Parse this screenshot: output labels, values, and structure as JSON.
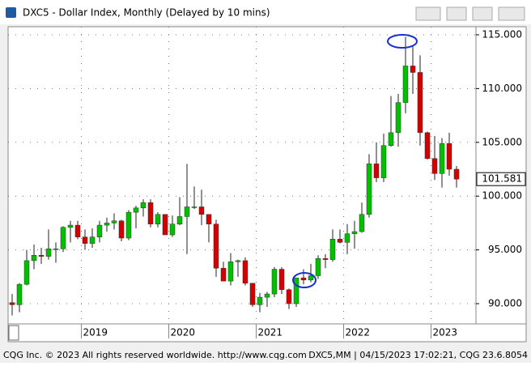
{
  "chart_data": {
    "type": "candlestick",
    "title": "DXC5 - Dollar Index, Monthly (Delayed by 10 mins)",
    "footer_left": "CQG Inc. © 2023 All rights reserved worldwide. http://www.cqg.com",
    "footer_right": "DXC5,MM | 04/15/2023 17:02:21, CQG 23.6.8054",
    "categories": [
      null,
      null,
      null,
      null,
      null,
      null,
      null,
      null,
      null,
      null,
      "2019",
      null,
      null,
      null,
      null,
      null,
      null,
      null,
      null,
      null,
      null,
      null,
      "2020",
      null,
      null,
      null,
      null,
      null,
      null,
      null,
      null,
      null,
      null,
      null,
      "2021",
      null,
      null,
      null,
      null,
      null,
      null,
      null,
      null,
      null,
      null,
      null,
      "2022",
      null,
      null,
      null,
      null,
      null,
      null,
      null,
      null,
      null,
      null,
      null,
      "2023",
      null,
      null,
      null
    ],
    "open": [
      90.1,
      89.9,
      91.8,
      94.0,
      94.5,
      94.4,
      95.1,
      95.1,
      97.1,
      97.3,
      96.2,
      95.6,
      96.2,
      97.3,
      97.5,
      97.7,
      96.1,
      98.5,
      98.9,
      99.4,
      97.4,
      98.3,
      96.4,
      97.4,
      98.1,
      99.0,
      99.0,
      98.3,
      97.4,
      93.3,
      92.1,
      93.9,
      94.0,
      91.9,
      89.9,
      90.6,
      90.9,
      93.2,
      91.3,
      90.0,
      92.4,
      92.2,
      92.6,
      94.2,
      94.1,
      96.0,
      95.7,
      96.5,
      96.7,
      98.3,
      103.0,
      101.7,
      104.7,
      105.9,
      108.7,
      112.1,
      111.5,
      105.9,
      103.5,
      102.1,
      104.9,
      102.5
    ],
    "high": [
      90.9,
      91.9,
      95.0,
      95.5,
      95.2,
      96.9,
      95.7,
      97.2,
      97.7,
      97.7,
      96.9,
      97.0,
      97.7,
      98.0,
      98.4,
      97.8,
      98.7,
      99.1,
      99.7,
      99.7,
      98.5,
      98.3,
      98.2,
      99.9,
      103.0,
      100.9,
      100.6,
      98.3,
      97.8,
      93.9,
      94.7,
      94.1,
      94.3,
      91.9,
      91.0,
      91.1,
      93.4,
      93.4,
      91.4,
      92.4,
      93.2,
      93.7,
      94.5,
      94.6,
      96.9,
      96.9,
      97.4,
      97.7,
      99.4,
      103.9,
      105.0,
      105.8,
      109.3,
      109.5,
      114.8,
      113.9,
      113.1,
      106.0,
      105.6,
      105.4,
      105.9,
      102.8
    ],
    "low": [
      88.9,
      89.2,
      91.7,
      93.2,
      93.7,
      94.1,
      93.8,
      94.8,
      95.7,
      96.0,
      95.0,
      95.2,
      95.7,
      96.7,
      96.9,
      95.8,
      95.9,
      97.0,
      98.1,
      97.1,
      97.1,
      96.4,
      96.2,
      97.3,
      94.6,
      98.8,
      97.3,
      95.7,
      92.5,
      92.1,
      91.7,
      92.5,
      91.7,
      89.7,
      89.2,
      89.7,
      90.6,
      90.9,
      89.5,
      89.7,
      91.8,
      92.0,
      92.3,
      93.3,
      93.9,
      95.6,
      94.6,
      95.1,
      96.6,
      98.0,
      101.3,
      101.3,
      104.6,
      104.6,
      107.7,
      109.5,
      104.7,
      103.4,
      101.5,
      100.8,
      101.9,
      100.8
    ],
    "close": [
      89.9,
      91.8,
      94.0,
      94.5,
      94.4,
      95.1,
      95.1,
      97.1,
      97.3,
      96.2,
      95.6,
      96.2,
      97.3,
      97.5,
      97.7,
      96.1,
      98.5,
      98.9,
      99.4,
      97.4,
      98.3,
      96.4,
      97.4,
      98.1,
      99.0,
      99.0,
      98.3,
      97.4,
      93.3,
      92.1,
      93.9,
      94.0,
      91.9,
      89.9,
      90.6,
      90.9,
      93.2,
      91.3,
      90.0,
      92.4,
      92.2,
      92.6,
      94.2,
      94.1,
      96.0,
      95.7,
      96.5,
      96.7,
      98.3,
      103.0,
      101.7,
      104.7,
      105.9,
      108.7,
      112.1,
      111.5,
      105.9,
      103.5,
      102.1,
      104.9,
      102.5,
      101.581
    ],
    "up_color": "#00c000",
    "down_color": "#d40000",
    "ylim": [
      88.12,
      115.75
    ],
    "yticks": [
      {
        "value": 90,
        "label": "90.000"
      },
      {
        "value": 95,
        "label": "95.000"
      },
      {
        "value": 100,
        "label": "100.000"
      },
      {
        "value": 105,
        "label": "105.000"
      },
      {
        "value": 110,
        "label": "110.000"
      },
      {
        "value": 115,
        "label": "115.000"
      }
    ],
    "grid": true
  }
}
